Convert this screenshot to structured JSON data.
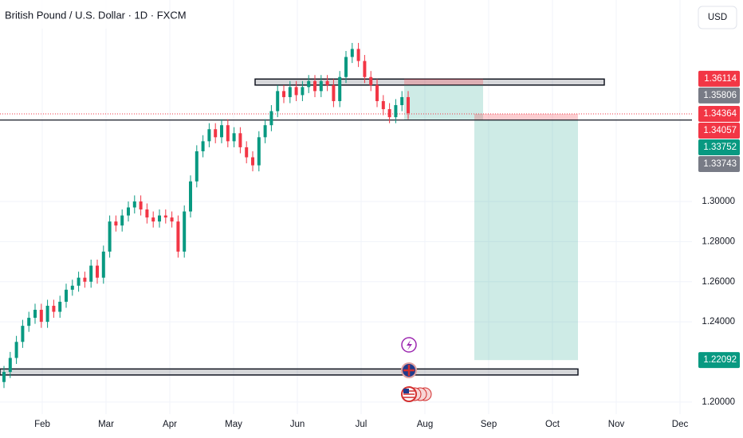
{
  "chart_data": {
    "type": "candlestick",
    "title": "British Pound / U.S. Dollar · 1D · FXCM",
    "currency_button": "USD",
    "months": [
      "Feb",
      "Mar",
      "Apr",
      "May",
      "Jun",
      "Jul",
      "Aug",
      "Sep",
      "Oct",
      "Nov",
      "Dec"
    ],
    "ylim": [
      1.194,
      1.4004
    ],
    "yticks": [
      {
        "value": 1.3,
        "label": "1.30000"
      },
      {
        "value": 1.28,
        "label": "1.28000"
      },
      {
        "value": 1.26,
        "label": "1.26000"
      },
      {
        "value": 1.24,
        "label": "1.24000"
      },
      {
        "value": 1.2,
        "label": "1.20000"
      }
    ],
    "grid": true,
    "up_color": "#089981",
    "down_color": "#f23645",
    "open": [
      1.21,
      1.215,
      1.222,
      1.23,
      1.238,
      1.242,
      1.246,
      1.24,
      1.248,
      1.245,
      1.25,
      1.256,
      1.258,
      1.262,
      1.26,
      1.268,
      1.262,
      1.275,
      1.29,
      1.288,
      1.293,
      1.297,
      1.3,
      1.296,
      1.292,
      1.29,
      1.293,
      1.292,
      1.29,
      1.275,
      1.295,
      1.31,
      1.325,
      1.33,
      1.336,
      1.332,
      1.338,
      1.33,
      1.334,
      1.327,
      1.322,
      1.318,
      1.332,
      1.338,
      1.345,
      1.355,
      1.352,
      1.357,
      1.353,
      1.357,
      1.36,
      1.355,
      1.36,
      1.358,
      1.35,
      1.362,
      1.372,
      1.376,
      1.37,
      1.362,
      1.358,
      1.35,
      1.346,
      1.342,
      1.348,
      1.352
    ],
    "high": [
      1.218,
      1.225,
      1.233,
      1.241,
      1.245,
      1.249,
      1.249,
      1.251,
      1.251,
      1.253,
      1.259,
      1.261,
      1.265,
      1.265,
      1.271,
      1.271,
      1.278,
      1.293,
      1.293,
      1.296,
      1.3,
      1.303,
      1.303,
      1.299,
      1.295,
      1.296,
      1.296,
      1.295,
      1.293,
      1.298,
      1.313,
      1.328,
      1.333,
      1.339,
      1.339,
      1.341,
      1.341,
      1.337,
      1.337,
      1.33,
      1.325,
      1.335,
      1.341,
      1.348,
      1.358,
      1.358,
      1.36,
      1.36,
      1.36,
      1.363,
      1.363,
      1.363,
      1.363,
      1.361,
      1.365,
      1.375,
      1.379,
      1.379,
      1.373,
      1.365,
      1.361,
      1.353,
      1.349,
      1.351,
      1.355,
      1.355
    ],
    "low": [
      1.207,
      1.212,
      1.219,
      1.227,
      1.235,
      1.239,
      1.237,
      1.237,
      1.242,
      1.242,
      1.247,
      1.253,
      1.255,
      1.257,
      1.257,
      1.259,
      1.259,
      1.272,
      1.285,
      1.285,
      1.29,
      1.294,
      1.293,
      1.289,
      1.287,
      1.287,
      1.289,
      1.287,
      1.272,
      1.272,
      1.292,
      1.307,
      1.322,
      1.327,
      1.329,
      1.329,
      1.327,
      1.327,
      1.324,
      1.319,
      1.315,
      1.315,
      1.329,
      1.335,
      1.342,
      1.349,
      1.349,
      1.35,
      1.35,
      1.354,
      1.352,
      1.352,
      1.355,
      1.347,
      1.347,
      1.359,
      1.369,
      1.367,
      1.359,
      1.355,
      1.347,
      1.343,
      1.339,
      1.339,
      1.345,
      1.341
    ],
    "close": [
      1.215,
      1.222,
      1.23,
      1.238,
      1.242,
      1.246,
      1.24,
      1.248,
      1.245,
      1.25,
      1.256,
      1.258,
      1.262,
      1.26,
      1.268,
      1.262,
      1.275,
      1.29,
      1.288,
      1.293,
      1.297,
      1.3,
      1.296,
      1.292,
      1.29,
      1.293,
      1.292,
      1.29,
      1.275,
      1.295,
      1.31,
      1.325,
      1.33,
      1.336,
      1.332,
      1.338,
      1.33,
      1.334,
      1.327,
      1.322,
      1.318,
      1.332,
      1.338,
      1.345,
      1.355,
      1.352,
      1.357,
      1.353,
      1.357,
      1.36,
      1.355,
      1.36,
      1.358,
      1.35,
      1.362,
      1.372,
      1.376,
      1.37,
      1.362,
      1.358,
      1.35,
      1.346,
      1.342,
      1.348,
      1.352,
      1.344
    ],
    "zones": [
      {
        "top": 1.361,
        "bottom": 1.358
      },
      {
        "top": 1.2165,
        "bottom": 1.2135
      }
    ],
    "level_line": 1.34057,
    "last_price": 1.34364,
    "positions": [
      {
        "entry": 1.35806,
        "stop": 1.36114,
        "target": 1.34057
      },
      {
        "entry": 1.34057,
        "stop": 1.34364,
        "target": 1.22092
      }
    ],
    "price_labels": [
      {
        "value": 1.36114,
        "label": "1.36114",
        "color": "#f23645"
      },
      {
        "value": 1.35806,
        "label": "1.35806",
        "color": "#787b86"
      },
      {
        "value": 1.34364,
        "label": "1.34364",
        "color": "#f23645"
      },
      {
        "value": 1.34057,
        "label": "1.34057",
        "color": "#f23645"
      },
      {
        "value": 1.33752,
        "label": "1.33752",
        "color": "#089981"
      },
      {
        "value": 1.33743,
        "label": "1.33743",
        "color": "#787b86"
      },
      {
        "value": 1.22092,
        "label": "1.22092",
        "color": "#089981"
      }
    ]
  }
}
